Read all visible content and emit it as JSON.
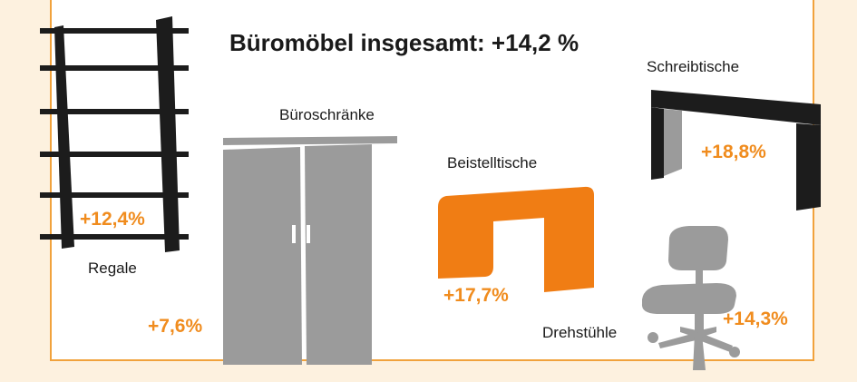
{
  "headline": "Büromöbel insgesamt: +14,2 %",
  "colors": {
    "accent": "#f07d14",
    "percent": "#f08c1e",
    "dark": "#1c1c1c",
    "gray": "#9b9b9b",
    "background": "#fdf1df",
    "frame": "#f1a23c"
  },
  "items": {
    "regale": {
      "label": "Regale",
      "value": "+12,4%",
      "icon": "shelf-icon"
    },
    "bueroschraenke": {
      "label": "Büroschränke",
      "value": "+7,6%",
      "icon": "cabinet-icon"
    },
    "beistelltische": {
      "label": "Beistelltische",
      "value": "+17,7%",
      "icon": "side-table-icon"
    },
    "schreibtische": {
      "label": "Schreibtische",
      "value": "+18,8%",
      "icon": "desk-icon"
    },
    "drehstuehle": {
      "label": "Drehstühle",
      "value": "+14,3%",
      "icon": "office-chair-icon"
    }
  }
}
